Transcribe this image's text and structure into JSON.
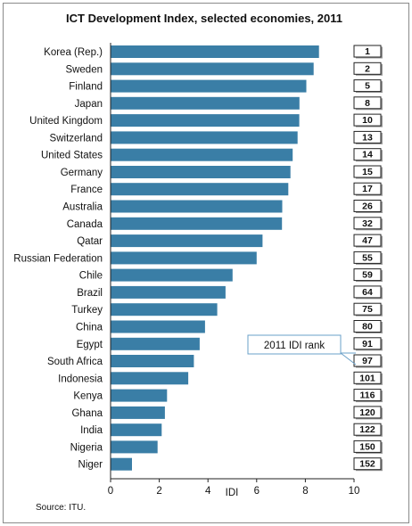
{
  "chart_data": {
    "type": "bar",
    "orientation": "horizontal",
    "title": "ICT Development Index, selected economies, 2011",
    "xlabel": "IDI",
    "ylabel": "",
    "xlim": [
      0,
      10
    ],
    "xticks": [
      "0",
      "2",
      "4",
      "6",
      "8",
      "10"
    ],
    "grid": false,
    "bar_color": "#3a7ea6",
    "categories": [
      "Korea (Rep.)",
      "Sweden",
      "Finland",
      "Japan",
      "United Kingdom",
      "Switzerland",
      "United States",
      "Germany",
      "France",
      "Australia",
      "Canada",
      "Qatar",
      "Russian Federation",
      "Chile",
      "Brazil",
      "Turkey",
      "China",
      "Egypt",
      "South Africa",
      "Indonesia",
      "Kenya",
      "Ghana",
      "India",
      "Nigeria",
      "Niger"
    ],
    "values": [
      8.56,
      8.34,
      8.04,
      7.76,
      7.75,
      7.68,
      7.48,
      7.39,
      7.3,
      7.05,
      7.04,
      6.24,
      6.0,
      5.01,
      4.72,
      4.38,
      3.88,
      3.66,
      3.42,
      3.19,
      2.32,
      2.23,
      2.1,
      1.93,
      0.88
    ],
    "ranks": [
      "1",
      "2",
      "5",
      "8",
      "10",
      "13",
      "14",
      "15",
      "17",
      "26",
      "32",
      "47",
      "55",
      "59",
      "64",
      "75",
      "80",
      "91",
      "97",
      "101",
      "116",
      "120",
      "122",
      "150",
      "152"
    ],
    "callout": "2011 IDI rank",
    "source": "Source: ITU."
  }
}
